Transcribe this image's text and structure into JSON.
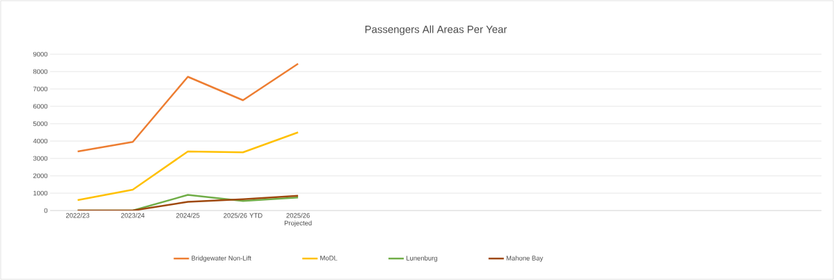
{
  "chart_data": {
    "type": "line",
    "title": "Passengers All Areas Per Year",
    "categories": [
      "2022/23",
      "2023/24",
      "2024/25",
      "2025/26 YTD",
      "2025/26 Projected",
      null,
      null,
      null,
      null,
      null,
      null,
      null,
      null,
      null
    ],
    "series": [
      {
        "name": "Bridgewater Non-Lift",
        "color": "#ed7d31",
        "values": [
          3400,
          3950,
          7700,
          6350,
          8450,
          null,
          null,
          null,
          null,
          null,
          null,
          null,
          null,
          null
        ]
      },
      {
        "name": "MoDL",
        "color": "#ffc000",
        "values": [
          600,
          1200,
          3400,
          3350,
          4500,
          null,
          null,
          null,
          null,
          null,
          null,
          null,
          null,
          null
        ]
      },
      {
        "name": "Lunenburg",
        "color": "#70ad47",
        "values": [
          0,
          0,
          900,
          550,
          750,
          null,
          null,
          null,
          null,
          null,
          null,
          null,
          null,
          null
        ]
      },
      {
        "name": "Mahone Bay",
        "color": "#9e480e",
        "values": [
          0,
          0,
          500,
          650,
          850,
          null,
          null,
          null,
          null,
          null,
          null,
          null,
          null,
          null
        ]
      }
    ],
    "ylim": [
      0,
      9000
    ],
    "yticks": [
      0,
      1000,
      2000,
      3000,
      4000,
      5000,
      6000,
      7000,
      8000,
      9000
    ],
    "grid": "y",
    "legend": "bottom",
    "marker": "none",
    "line_style": "solid"
  }
}
